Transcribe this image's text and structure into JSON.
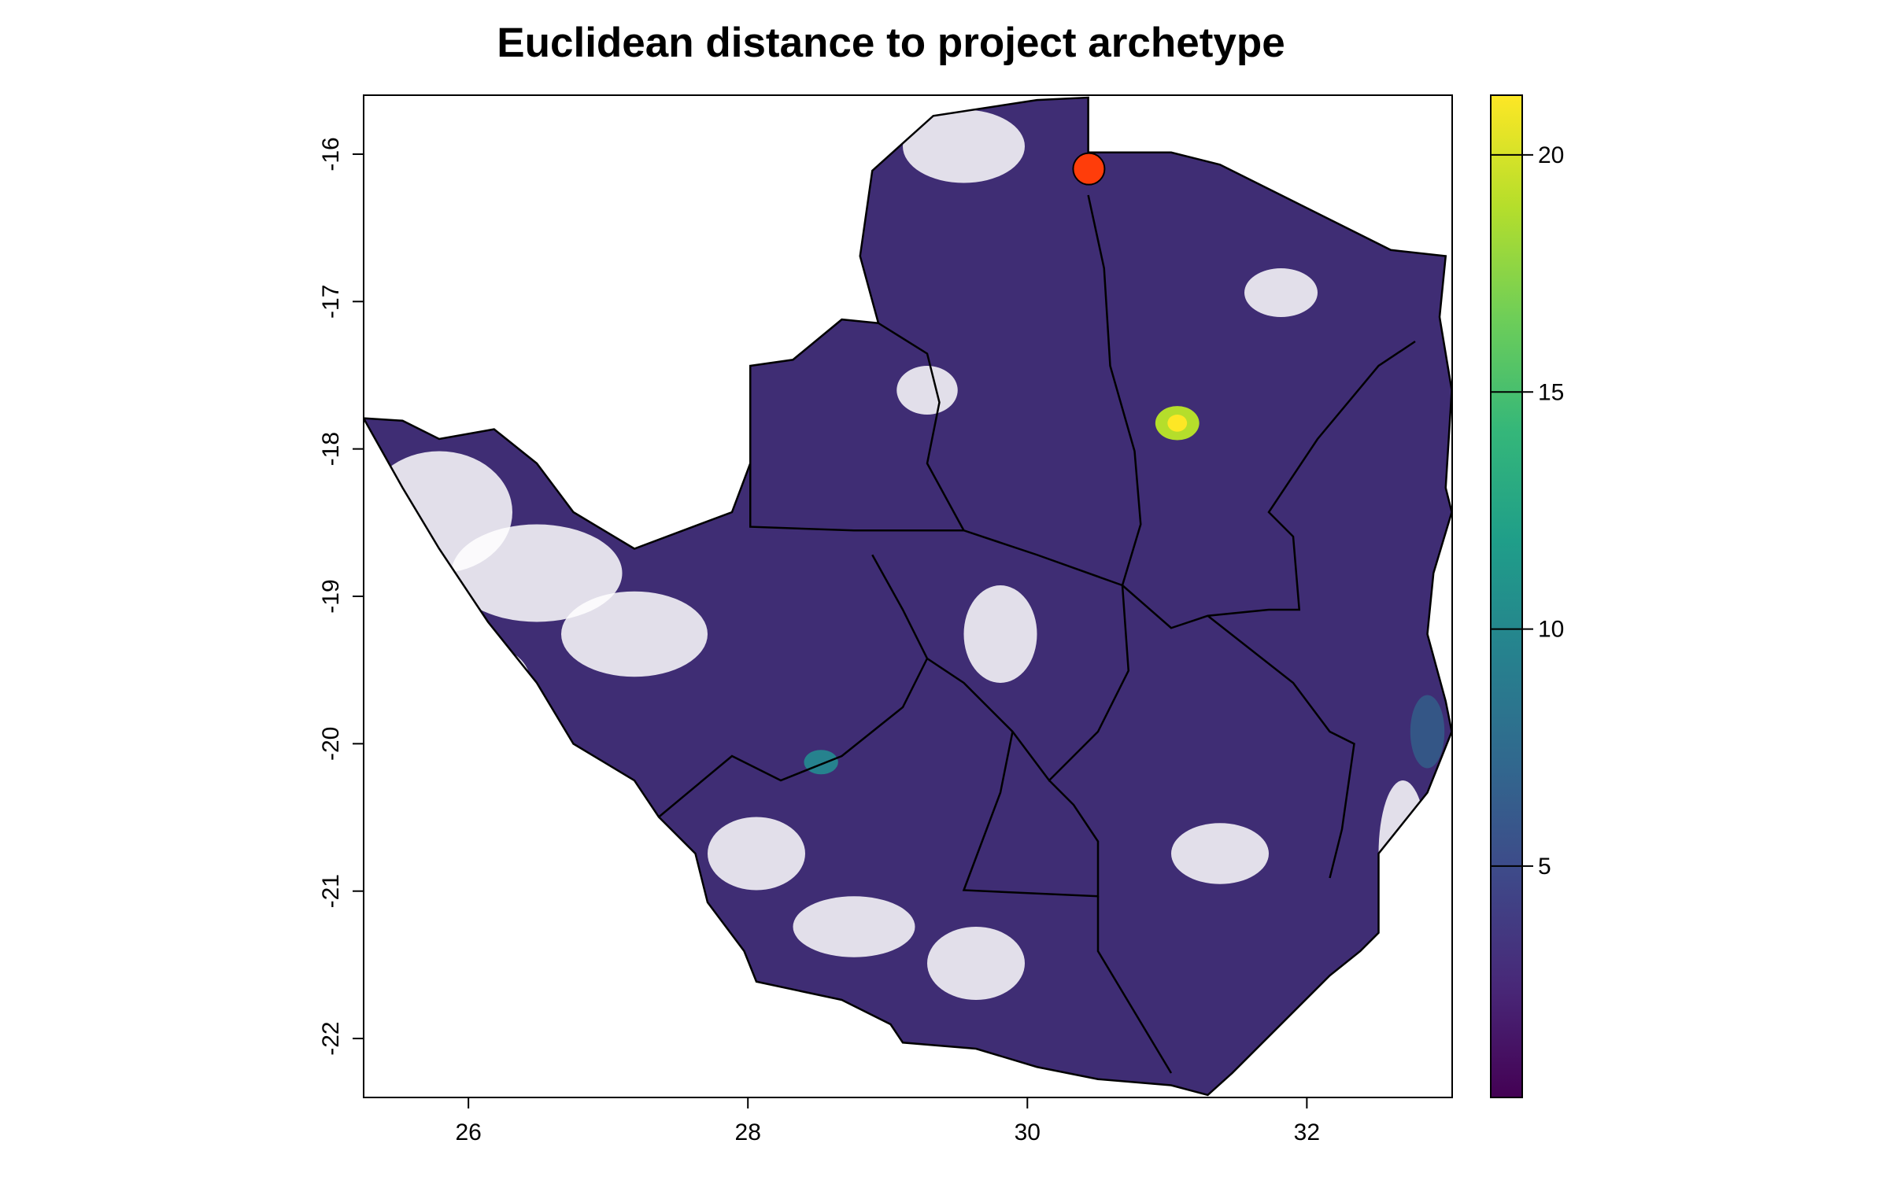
{
  "chart_data": {
    "type": "raster-map",
    "title": "Euclidean distance to project archetype",
    "xlim": [
      25.25,
      33.04
    ],
    "ylim": [
      -22.4,
      -15.6
    ],
    "xticks": [
      26,
      28,
      30,
      32
    ],
    "yticks": [
      -16,
      -17,
      -18,
      -19,
      -20,
      -21,
      -22
    ],
    "colorbar": {
      "zlim": [
        0.12,
        21.26
      ],
      "ticks": [
        5,
        10,
        15,
        20
      ],
      "colors": [
        "#440154",
        "#482878",
        "#3e4989",
        "#31688e",
        "#26828e",
        "#1f9e89",
        "#35b779",
        "#6ece58",
        "#b5de2b",
        "#fde725"
      ]
    },
    "point": {
      "x": 30.44,
      "y": -16.1,
      "color": "#ff3d0a"
    }
  }
}
